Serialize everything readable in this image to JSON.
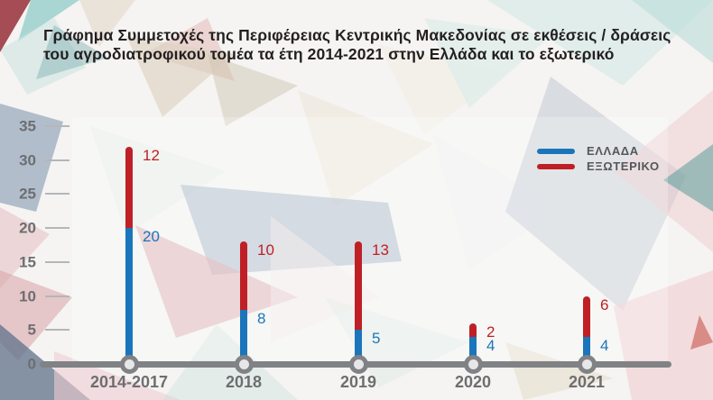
{
  "title": {
    "line1": "Γράφημα Συμμετοχές της Περιφέρειας Κεντρικής Μακεδονίας σε εκθέσεις / δράσεις",
    "line2": "του αγροδιατροφικού τομέα τα έτη 2014-2021 στην Ελλάδα και το εξωτερικό"
  },
  "legend": {
    "items": [
      {
        "label": "ΕΛΛΑΔΑ",
        "color": "#1b75bb"
      },
      {
        "label": "ΕΞΩΤΕΡΙΚΟ",
        "color": "#be2026"
      }
    ]
  },
  "chart_data": {
    "type": "bar",
    "stacked": true,
    "title": "Γράφημα Συμμετοχές της Περιφέρειας Κεντρικής Μακεδονίας σε εκθέσεις / δράσεις του αγροδιατροφικού τομέα τα έτη 2014-2021 στην Ελλάδα και το εξωτερικό",
    "categories": [
      "2014-2017",
      "2018",
      "2019",
      "2020",
      "2021"
    ],
    "series": [
      {
        "name": "ΕΛΛΑΔΑ",
        "color": "#1b75bb",
        "values": [
          20,
          8,
          5,
          4,
          4
        ]
      },
      {
        "name": "ΕΞΩΤΕΡΙΚΟ",
        "color": "#be2026",
        "values": [
          12,
          10,
          13,
          2,
          6
        ]
      }
    ],
    "totals": [
      32,
      18,
      18,
      6,
      10
    ],
    "yticks": [
      0,
      5,
      10,
      15,
      20,
      25,
      30,
      35
    ],
    "ylim": [
      0,
      35
    ],
    "xlabel": "",
    "ylabel": "",
    "grid": false,
    "legend_position": "top-right",
    "value_labels": true,
    "axis_color": "#808285",
    "tick_label_color": "#6d6e71"
  }
}
